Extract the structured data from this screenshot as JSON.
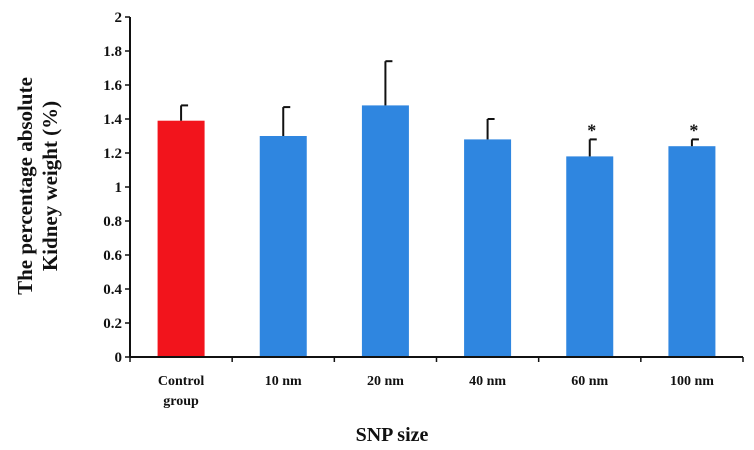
{
  "chart_data": {
    "type": "bar",
    "xlabel": "SNP size",
    "ylabel_lines": [
      "The percentage absolute",
      "Kidney weight (%)"
    ],
    "categories": [
      [
        "Control",
        "group"
      ],
      [
        "10 nm"
      ],
      [
        "20 nm"
      ],
      [
        "40 nm"
      ],
      [
        "60 nm"
      ],
      [
        "100 nm"
      ]
    ],
    "values": [
      1.39,
      1.3,
      1.48,
      1.28,
      1.18,
      1.24
    ],
    "error_upper": [
      0.09,
      0.17,
      0.26,
      0.12,
      0.1,
      0.04
    ],
    "annotations": [
      "",
      "",
      "",
      "",
      "*",
      "*"
    ],
    "bar_colors": [
      "#f2141c",
      "#2f86e0",
      "#2f86e0",
      "#2f86e0",
      "#2f86e0",
      "#2f86e0"
    ],
    "ylim": [
      0,
      2
    ],
    "yticks": [
      0,
      0.2,
      0.4,
      0.6,
      0.8,
      1,
      1.2,
      1.4,
      1.6,
      1.8,
      2
    ],
    "ytick_labels": [
      "0",
      "0.2",
      "0.4",
      "0.6",
      "0.8",
      "1",
      "1.2",
      "1.4",
      "1.6",
      "1.8",
      "2"
    ],
    "grid": false,
    "legend": false
  }
}
